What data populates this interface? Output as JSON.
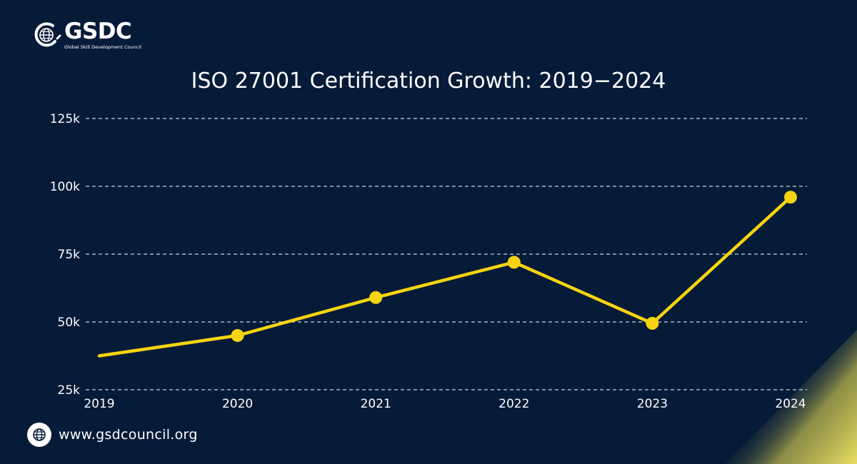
{
  "brand": {
    "name": "GSDC",
    "tagline": "Global Skill Development Council"
  },
  "footer": {
    "url": "www.gsdcouncil.org",
    "icon": "globe-icon"
  },
  "colors": {
    "background": "#061b38",
    "line": "#f6d410",
    "grid": "#c9d1dc",
    "text": "#ffffff",
    "accent_corner": "#e7de62"
  },
  "chart_data": {
    "type": "line",
    "title": "ISO 27001 Certification Growth: 2019−2024",
    "xlabel": "",
    "ylabel": "",
    "categories": [
      "2019",
      "2020",
      "2021",
      "2022",
      "2023",
      "2024"
    ],
    "series": [
      {
        "values": [
          37500,
          45000,
          59000,
          72000,
          49500,
          96000
        ]
      }
    ],
    "markers": [
      false,
      true,
      true,
      true,
      true,
      true
    ],
    "yticks": [
      25000,
      50000,
      75000,
      100000,
      125000
    ],
    "ytick_labels": [
      "25k",
      "50k",
      "75k",
      "100k",
      "125k"
    ],
    "ylim": [
      25000,
      125000
    ],
    "grid": true,
    "grid_style": "dashed",
    "legend": "none"
  }
}
